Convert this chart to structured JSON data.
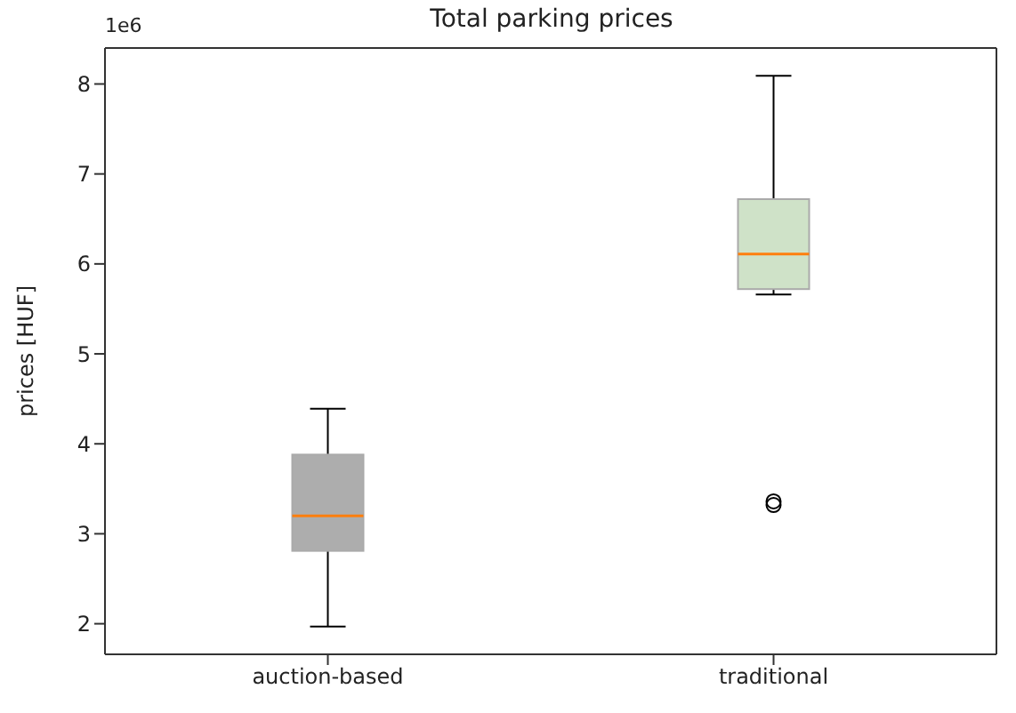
{
  "chart_data": {
    "type": "box",
    "title": "Total parking prices",
    "ylabel": "prices [HUF]",
    "annotations": [
      "1e6"
    ],
    "categories": [
      "auction-based",
      "traditional"
    ],
    "colors": [
      "#adadad",
      "#cfe2c8"
    ],
    "boxes": [
      {
        "low": 1.97,
        "q1": 2.81,
        "median": 3.2,
        "q3": 3.88,
        "high": 4.39
      },
      {
        "low": 5.66,
        "q1": 5.72,
        "median": 6.11,
        "q3": 6.72,
        "high": 8.09,
        "outliers": [
          3.32,
          3.36
        ]
      }
    ],
    "ylim": [
      1.66,
      8.4
    ],
    "yticks": [
      2,
      3,
      4,
      5,
      6,
      7,
      8
    ]
  }
}
